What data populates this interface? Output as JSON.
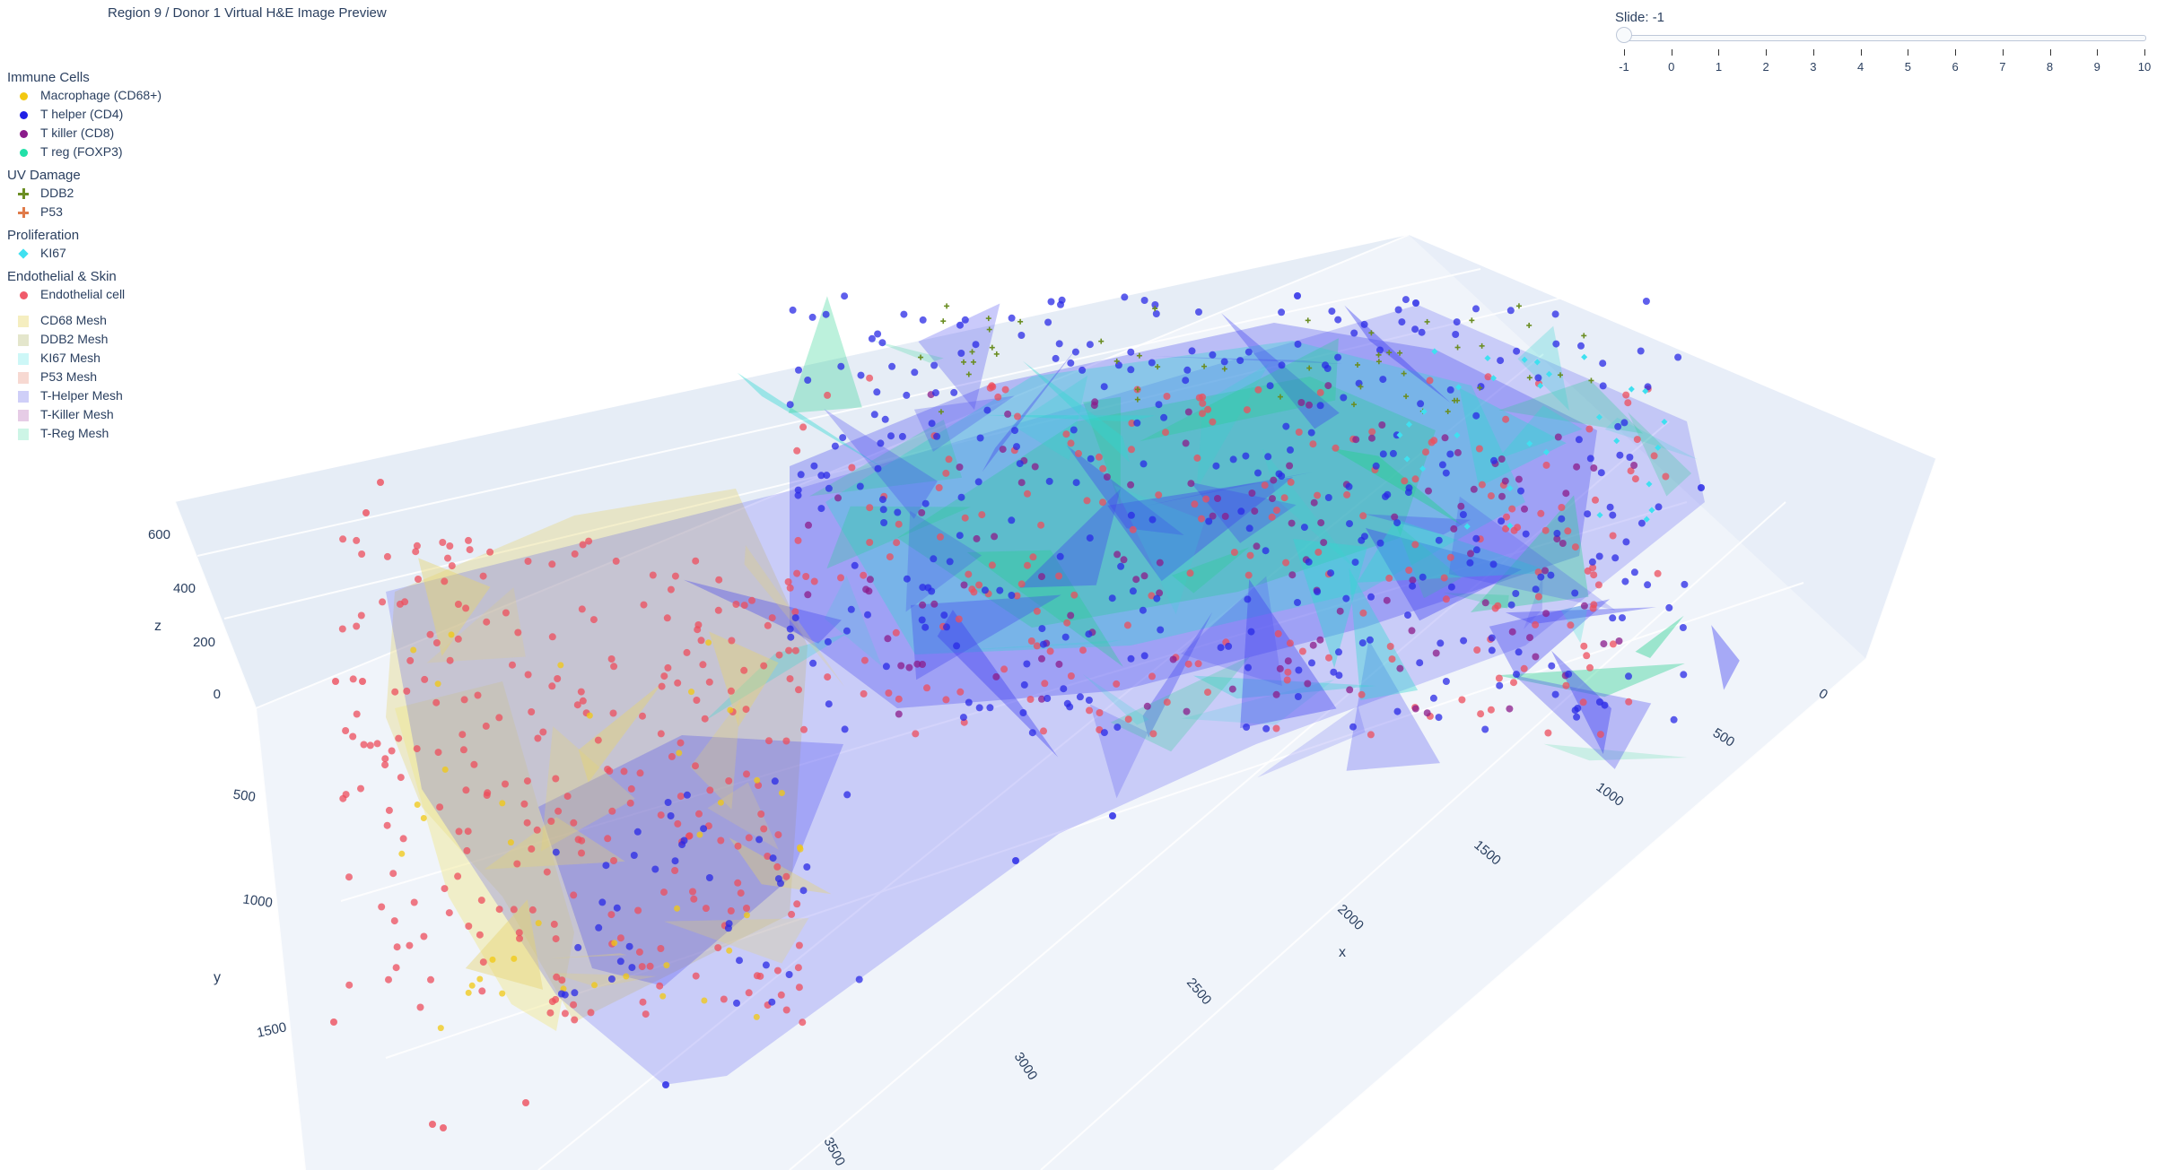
{
  "header": {
    "title": "Region 9 / Donor 1  Virtual H&E Image Preview"
  },
  "legend": {
    "groups": [
      {
        "title": "Immune Cells",
        "items": [
          {
            "label": "Macrophage (CD68+)",
            "symbol": "circle",
            "color": "#f2c811"
          },
          {
            "label": "T helper (CD4)",
            "symbol": "circle",
            "color": "#2020e6"
          },
          {
            "label": "T killer (CD8)",
            "symbol": "circle",
            "color": "#8b1c8b"
          },
          {
            "label": "T reg (FOXP3)",
            "symbol": "circle",
            "color": "#22e0a8"
          }
        ]
      },
      {
        "title": "UV Damage",
        "items": [
          {
            "label": "DDB2",
            "symbol": "cross",
            "color": "#6b8e23"
          },
          {
            "label": "P53",
            "symbol": "cross",
            "color": "#e07b4a"
          }
        ]
      },
      {
        "title": "Proliferation",
        "items": [
          {
            "label": "KI67",
            "symbol": "diamond",
            "color": "#3fe0f0"
          }
        ]
      },
      {
        "title": "Endothelial & Skin",
        "items": [
          {
            "label": "Endothelial cell",
            "symbol": "circle",
            "color": "#f05a6a"
          }
        ]
      }
    ],
    "meshes": [
      {
        "label": "CD68 Mesh",
        "color": "#f5eec0"
      },
      {
        "label": "DDB2 Mesh",
        "color": "#e4e6cc"
      },
      {
        "label": "KI67 Mesh",
        "color": "#cdf7f7"
      },
      {
        "label": "P53 Mesh",
        "color": "#f7d9d2"
      },
      {
        "label": "T-Helper Mesh",
        "color": "#cfcff8"
      },
      {
        "label": "T-Killer Mesh",
        "color": "#e6cce6"
      },
      {
        "label": "T-Reg Mesh",
        "color": "#cdf5e6"
      }
    ]
  },
  "slider": {
    "label": "Slide: -1",
    "value": -1,
    "min": -1,
    "max": 10,
    "ticks": [
      "-1",
      "0",
      "1",
      "2",
      "3",
      "4",
      "5",
      "6",
      "7",
      "8",
      "9",
      "10"
    ]
  },
  "scene": {
    "axes": {
      "x": {
        "title": "x",
        "ticks": [
          "0",
          "500",
          "1000",
          "1500",
          "2000",
          "2500",
          "3000",
          "3500"
        ]
      },
      "y": {
        "title": "y",
        "ticks": [
          "500",
          "1000",
          "1500"
        ]
      },
      "z": {
        "title": "z",
        "ticks": [
          "0",
          "200",
          "400",
          "600"
        ]
      }
    },
    "colors": {
      "pane": "#ebf0f8",
      "grid": "#ffffff",
      "thelper_mesh": "#4040f0",
      "cd68_mesh": "#e6d470",
      "ki67_mesh": "#30d8d0",
      "treg_mesh": "#22d08c",
      "thelper_point": "#2a2ae6",
      "endothelial_point": "#ee4d5c",
      "macrophage_point": "#f2c811",
      "tkiller_point": "#8b1c8b"
    }
  }
}
